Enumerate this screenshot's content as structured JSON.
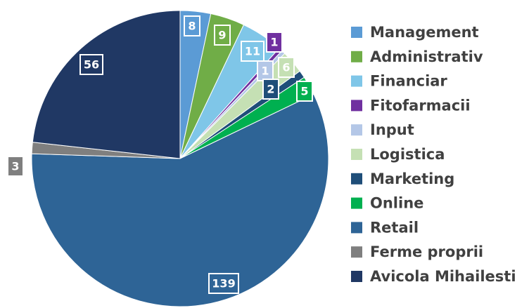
{
  "chart_data": {
    "type": "pie",
    "categories": [
      "Management",
      "Administrativ",
      "Financiar",
      "Fitofarmacii",
      "Input",
      "Logistica",
      "Marketing",
      "Online",
      "Retail",
      "Ferme proprii",
      "Avicola Mihailesti"
    ],
    "values": [
      8,
      9,
      11,
      1,
      1,
      6,
      2,
      5,
      139,
      3,
      56
    ],
    "colors": [
      "#5b9bd5",
      "#70ad47",
      "#7fc6e8",
      "#7030a0",
      "#b4c7e7",
      "#c5e0b4",
      "#1f4e79",
      "#00b050",
      "#2e6496",
      "#7f7f7f",
      "#203864"
    ],
    "legend": "right"
  }
}
